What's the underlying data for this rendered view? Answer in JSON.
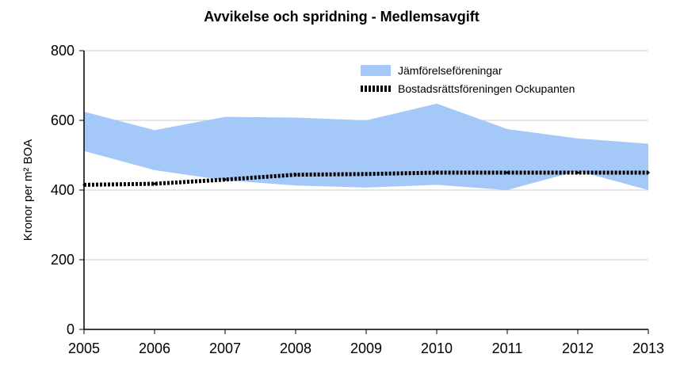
{
  "chart_data": {
    "type": "area",
    "title": "Avvikelse och spridning - Medlemsavgift",
    "xlabel": "",
    "ylabel": "Kronor per m² BOA",
    "x": [
      "2005",
      "2006",
      "2007",
      "2008",
      "2009",
      "2010",
      "2011",
      "2012",
      "2013"
    ],
    "yticks": [
      "0",
      "200",
      "400",
      "600",
      "800"
    ],
    "ylim": [
      0,
      800
    ],
    "grid": true,
    "legend_position": "top-right",
    "band": {
      "name": "Jämförelseföreningar",
      "color": "#a4c8f8",
      "upper": [
        625,
        572,
        610,
        608,
        600,
        648,
        575,
        548,
        533
      ],
      "lower": [
        512,
        457,
        428,
        413,
        407,
        415,
        400,
        455,
        400
      ]
    },
    "line": {
      "name": "Bostadsrättsföreningen Ockupanten",
      "color": "#000000",
      "values": [
        415,
        418,
        430,
        444,
        446,
        450,
        450,
        450,
        450
      ]
    }
  }
}
